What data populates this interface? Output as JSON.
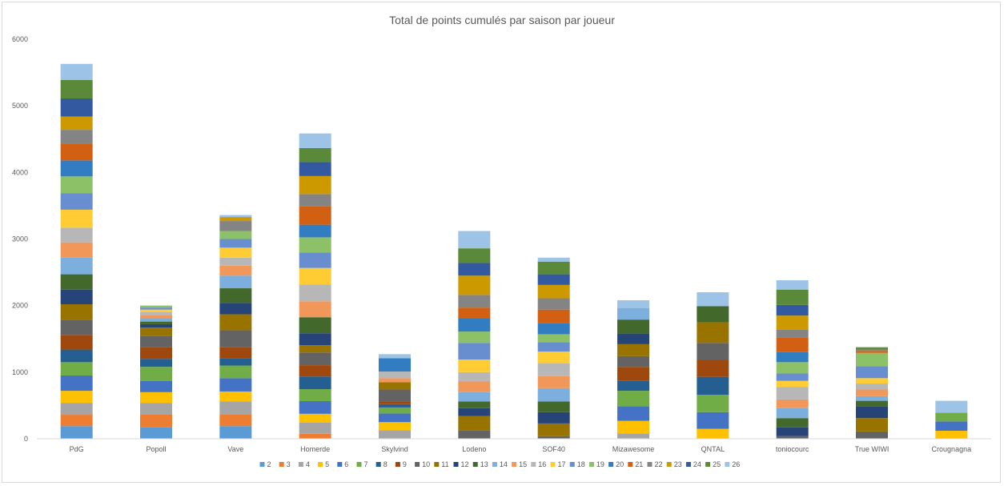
{
  "chart_data": {
    "type": "bar",
    "stacked": true,
    "title": "Total de points cumulés par saison par joueur",
    "xlabel": "",
    "ylabel": "",
    "ylim": [
      0,
      6000
    ],
    "yticks": [
      0,
      1000,
      2000,
      3000,
      4000,
      5000,
      6000
    ],
    "grid": false,
    "legend_position": "bottom",
    "categories": [
      "PdG",
      "Popoll",
      "Vave",
      "Homerde",
      "Skylvind",
      "Lodeno",
      "SOF40",
      "Mizawesome",
      "QNTAL",
      "toniocourc",
      "True WIWI",
      "Crougnagna"
    ],
    "series": [
      {
        "name": "2",
        "color": "#5b9bd5",
        "values": [
          190,
          170,
          190,
          0,
          0,
          0,
          0,
          0,
          0,
          0,
          0,
          0
        ]
      },
      {
        "name": "3",
        "color": "#ed7d31",
        "values": [
          170,
          200,
          180,
          75,
          0,
          0,
          0,
          0,
          0,
          0,
          0,
          0
        ]
      },
      {
        "name": "4",
        "color": "#a5a5a5",
        "values": [
          180,
          170,
          190,
          170,
          130,
          0,
          0,
          80,
          0,
          0,
          0,
          0
        ]
      },
      {
        "name": "5",
        "color": "#ffc000",
        "values": [
          180,
          160,
          150,
          130,
          120,
          0,
          0,
          190,
          150,
          0,
          0,
          120
        ]
      },
      {
        "name": "6",
        "color": "#4472c4",
        "values": [
          230,
          170,
          200,
          190,
          130,
          0,
          0,
          220,
          250,
          0,
          0,
          140
        ]
      },
      {
        "name": "7",
        "color": "#70ad47",
        "values": [
          200,
          210,
          190,
          180,
          90,
          0,
          0,
          230,
          260,
          0,
          0,
          130
        ]
      },
      {
        "name": "8",
        "color": "#255e91",
        "values": [
          190,
          120,
          110,
          190,
          50,
          0,
          0,
          150,
          270,
          0,
          0,
          0
        ]
      },
      {
        "name": "9",
        "color": "#9e480e",
        "values": [
          220,
          180,
          170,
          170,
          40,
          0,
          0,
          210,
          260,
          0,
          0,
          0
        ]
      },
      {
        "name": "10",
        "color": "#636363",
        "values": [
          220,
          160,
          250,
          190,
          180,
          130,
          40,
          160,
          250,
          40,
          110,
          0
        ]
      },
      {
        "name": "11",
        "color": "#997300",
        "values": [
          240,
          130,
          240,
          110,
          110,
          210,
          190,
          180,
          310,
          0,
          200,
          0
        ]
      },
      {
        "name": "12",
        "color": "#264478",
        "values": [
          220,
          50,
          170,
          180,
          0,
          120,
          170,
          160,
          0,
          130,
          180,
          0
        ]
      },
      {
        "name": "13",
        "color": "#43682b",
        "values": [
          230,
          40,
          220,
          240,
          0,
          100,
          160,
          210,
          240,
          140,
          80,
          0
        ]
      },
      {
        "name": "14",
        "color": "#7cafdd",
        "values": [
          250,
          50,
          190,
          0,
          0,
          140,
          200,
          170,
          0,
          150,
          70,
          0
        ]
      },
      {
        "name": "15",
        "color": "#f1975a",
        "values": [
          230,
          50,
          150,
          240,
          60,
          160,
          180,
          0,
          0,
          130,
          100,
          0
        ]
      },
      {
        "name": "16",
        "color": "#b7b7b7",
        "values": [
          220,
          40,
          120,
          250,
          100,
          140,
          190,
          0,
          0,
          190,
          90,
          0
        ]
      },
      {
        "name": "17",
        "color": "#ffcd33",
        "values": [
          270,
          40,
          150,
          250,
          0,
          190,
          180,
          0,
          0,
          90,
          80,
          0
        ]
      },
      {
        "name": "18",
        "color": "#698ed0",
        "values": [
          250,
          30,
          130,
          230,
          0,
          250,
          140,
          0,
          0,
          110,
          180,
          0
        ]
      },
      {
        "name": "19",
        "color": "#8cc168",
        "values": [
          250,
          30,
          120,
          230,
          0,
          170,
          120,
          0,
          0,
          170,
          200,
          0
        ]
      },
      {
        "name": "20",
        "color": "#327dc2",
        "values": [
          240,
          0,
          0,
          190,
          200,
          200,
          170,
          0,
          0,
          150,
          0,
          0
        ]
      },
      {
        "name": "21",
        "color": "#d26012",
        "values": [
          250,
          0,
          0,
          280,
          0,
          160,
          200,
          0,
          0,
          220,
          30,
          0
        ]
      },
      {
        "name": "22",
        "color": "#848484",
        "values": [
          210,
          0,
          150,
          180,
          0,
          190,
          170,
          0,
          0,
          120,
          20,
          0
        ]
      },
      {
        "name": "23",
        "color": "#cc9a00",
        "values": [
          200,
          0,
          60,
          270,
          0,
          290,
          200,
          0,
          0,
          210,
          0,
          0
        ]
      },
      {
        "name": "24",
        "color": "#335aa1",
        "values": [
          270,
          0,
          0,
          210,
          0,
          190,
          160,
          0,
          0,
          160,
          0,
          0
        ]
      },
      {
        "name": "25",
        "color": "#5a8a39",
        "values": [
          280,
          0,
          0,
          210,
          0,
          220,
          190,
          0,
          0,
          230,
          30,
          0
        ]
      },
      {
        "name": "26",
        "color": "#9dc3e6",
        "values": [
          240,
          0,
          30,
          220,
          60,
          260,
          60,
          120,
          210,
          140,
          10,
          180
        ]
      }
    ]
  }
}
